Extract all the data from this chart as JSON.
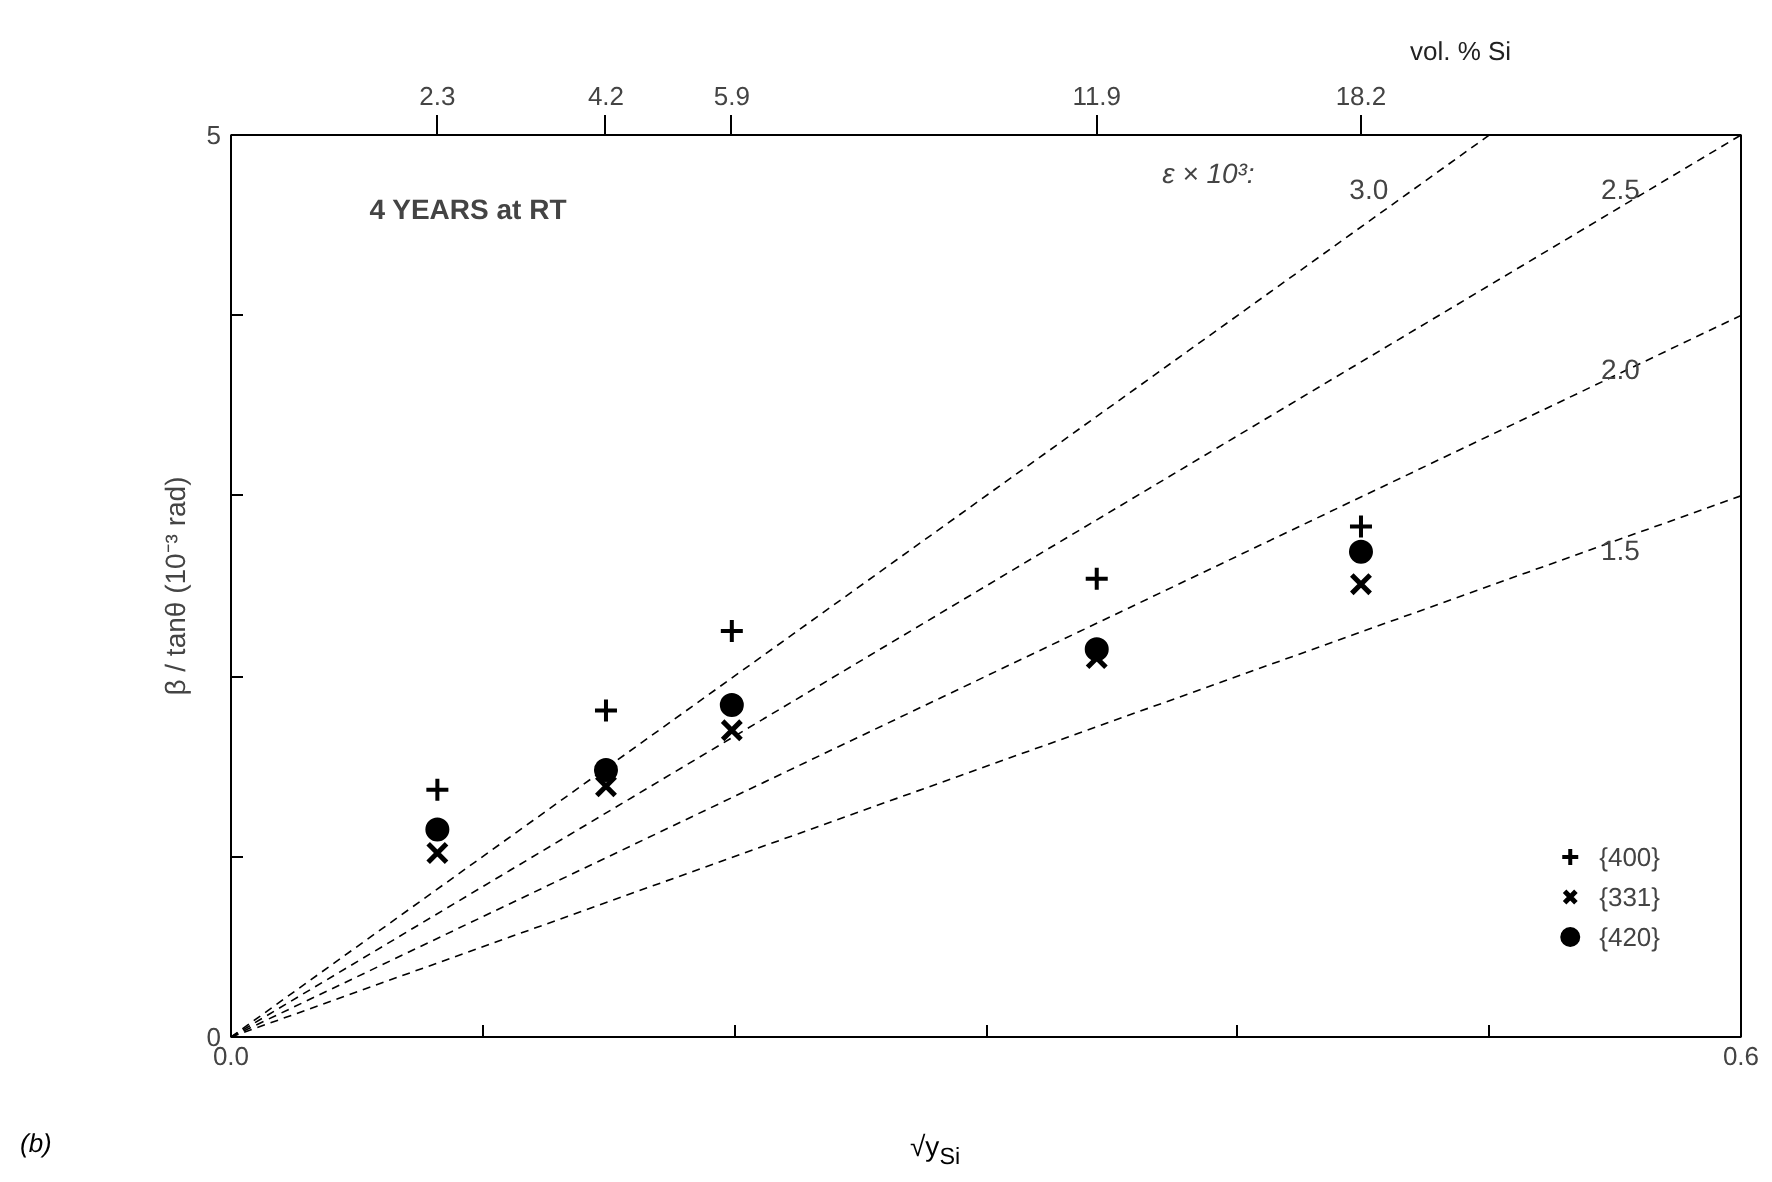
{
  "chart_data": {
    "type": "scatter",
    "xlabel": "√y$_{Si}$",
    "ylabel": "β / tanθ (10⁻³ rad)",
    "annotations": [
      "4 YEARS at RT",
      "ε × 10³:",
      "(b)",
      "vol. % Si",
      "2.3",
      "4.2",
      "5.9",
      "11.9",
      "18.2"
    ],
    "x": [
      0.082,
      0.149,
      0.199,
      0.344,
      0.449
    ],
    "series": [
      {
        "name": "{400}",
        "color": "#000000",
        "marker": "cross",
        "values": [
          1.37,
          1.81,
          2.25,
          2.54,
          2.83
        ]
      },
      {
        "name": "{331}",
        "color": "#000000",
        "marker": "x",
        "values": [
          1.02,
          1.39,
          1.7,
          2.1,
          2.51
        ]
      },
      {
        "name": "{420}",
        "color": "#000000",
        "marker": "circle",
        "values": [
          1.15,
          1.48,
          1.84,
          2.15,
          2.69
        ]
      },
      {
        "name": "3.0",
        "type": "line",
        "line_style": "dashed",
        "color": "#000000",
        "x": [
          0,
          0.5
        ],
        "values": [
          0,
          5
        ]
      },
      {
        "name": "2.5",
        "type": "line",
        "line_style": "dashed",
        "color": "#000000",
        "x": [
          0,
          0.6
        ],
        "values": [
          0,
          5
        ]
      },
      {
        "name": "2.0",
        "type": "line",
        "line_style": "dashed",
        "color": "#000000",
        "x": [
          0,
          0.6
        ],
        "values": [
          0,
          4
        ]
      },
      {
        "name": "1.5",
        "type": "line",
        "line_style": "dashed",
        "color": "#000000",
        "x": [
          0,
          0.6
        ],
        "values": [
          0,
          3
        ]
      }
    ],
    "xlim": [
      0,
      0.6
    ],
    "ylim": [
      0,
      5
    ],
    "xticks": [
      {
        "value": 0,
        "label": "0.0"
      },
      {
        "value": 0.1,
        "label": null
      },
      {
        "value": 0.2,
        "label": null
      },
      {
        "value": 0.3,
        "label": null
      },
      {
        "value": 0.4,
        "label": null
      },
      {
        "value": 0.5,
        "label": null
      },
      0.6
    ],
    "yticks": [
      0,
      {
        "value": 1,
        "label": null
      },
      {
        "value": 2,
        "label": null
      },
      {
        "value": 3,
        "label": null
      },
      {
        "value": 4,
        "label": null
      },
      5
    ],
    "legend": "bottom right",
    "grid": false
  }
}
